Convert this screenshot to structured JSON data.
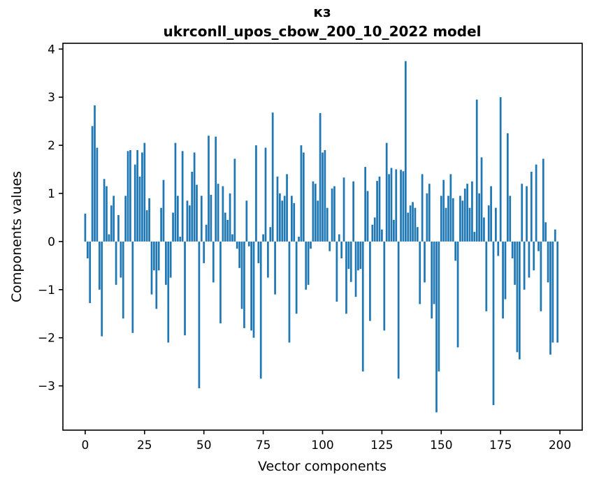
{
  "figure": {
    "suptitle": "кз",
    "axes_title": "ukrconll_upos_cbow_200_10_2022 model",
    "xlabel": "Vector components",
    "ylabel": "Components values"
  },
  "chart_data": {
    "type": "bar",
    "suptitle": "кз",
    "title": "ukrconll_upos_cbow_200_10_2022 model",
    "xlabel": "Vector components",
    "ylabel": "Components values",
    "legend": "none",
    "grid": false,
    "bar_color": "#1f77b4",
    "frame_color": "#000000",
    "xlim": [
      -9.4,
      209.4
    ],
    "ylim": [
      -3.92,
      4.12
    ],
    "x_ticks": [
      0,
      25,
      50,
      75,
      100,
      125,
      150,
      175,
      200
    ],
    "x_tick_labels": [
      "0",
      "25",
      "50",
      "75",
      "100",
      "125",
      "150",
      "175",
      "200"
    ],
    "y_ticks": [
      -3,
      -2,
      -1,
      0,
      1,
      2,
      3,
      4
    ],
    "y_tick_labels": [
      "−3",
      "−2",
      "−1",
      "0",
      "1",
      "2",
      "3",
      "4"
    ],
    "x_start_index": 0,
    "values": [
      0.58,
      -0.35,
      -1.28,
      2.4,
      2.83,
      1.95,
      -1.0,
      -1.97,
      1.3,
      1.15,
      0.15,
      0.75,
      0.95,
      -0.9,
      0.55,
      -0.75,
      -1.6,
      0.95,
      1.88,
      1.9,
      -1.9,
      1.6,
      1.9,
      1.35,
      1.85,
      2.05,
      0.65,
      0.9,
      -1.1,
      -0.6,
      -1.4,
      -0.6,
      0.7,
      1.28,
      -0.9,
      -2.1,
      -0.75,
      0.6,
      2.05,
      0.95,
      0.1,
      1.88,
      -1.95,
      0.85,
      0.75,
      1.45,
      1.85,
      1.18,
      -3.05,
      0.95,
      -0.45,
      0.35,
      2.2,
      0.97,
      -0.85,
      2.18,
      1.2,
      -1.7,
      1.15,
      0.6,
      0.45,
      1.0,
      0.15,
      1.72,
      -0.15,
      -0.55,
      -1.4,
      -1.8,
      0.85,
      -0.1,
      -1.85,
      -2.0,
      2.0,
      -0.45,
      -2.85,
      0.15,
      1.95,
      -0.75,
      0.3,
      2.68,
      -1.1,
      1.35,
      1.0,
      0.85,
      0.95,
      1.4,
      -2.1,
      0.95,
      0.8,
      -1.5,
      0.1,
      2.0,
      1.85,
      -1.0,
      -0.9,
      -0.15,
      1.25,
      1.2,
      0.85,
      2.67,
      1.85,
      1.9,
      0.7,
      -0.2,
      1.1,
      1.15,
      -1.25,
      0.15,
      -0.35,
      1.33,
      -1.5,
      -0.57,
      -0.84,
      1.25,
      -1.15,
      -0.6,
      -0.57,
      -2.7,
      1.55,
      1.05,
      -1.65,
      0.35,
      0.5,
      1.26,
      1.35,
      0.25,
      -1.85,
      2.05,
      1.4,
      1.53,
      0.45,
      1.5,
      -2.85,
      1.49,
      1.46,
      3.75,
      0.6,
      0.75,
      0.82,
      0.7,
      0.3,
      -1.3,
      1.4,
      -0.85,
      1.0,
      1.2,
      -1.6,
      -1.3,
      -3.55,
      -2.7,
      0.95,
      1.28,
      0.7,
      0.95,
      1.4,
      0.9,
      -0.4,
      -2.2,
      0.95,
      0.85,
      1.1,
      1.2,
      0.7,
      1.25,
      0.2,
      2.95,
      1.0,
      1.75,
      0.5,
      -1.45,
      0.75,
      1.15,
      -3.4,
      0.7,
      -0.3,
      3.0,
      -1.6,
      -1.2,
      2.25,
      0.95,
      -0.35,
      -0.9,
      -2.3,
      -2.45,
      1.2,
      -1.0,
      1.15,
      -0.75,
      1.45,
      -0.6,
      1.6,
      -0.2,
      -1.45,
      1.72,
      0.4,
      -0.85,
      -2.35,
      -2.1,
      0.25,
      -2.1
    ]
  }
}
